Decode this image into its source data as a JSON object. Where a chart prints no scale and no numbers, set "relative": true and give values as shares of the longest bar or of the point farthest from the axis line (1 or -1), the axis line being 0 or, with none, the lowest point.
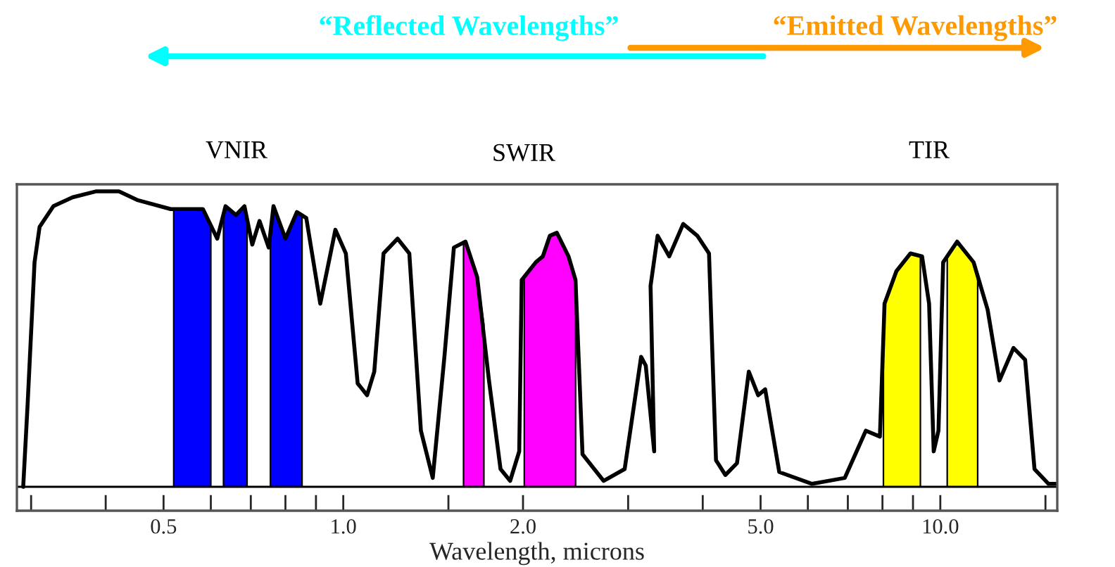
{
  "chart_data": {
    "type": "line",
    "relative": true,
    "log": "x",
    "tick_labels": "x",
    "marker": "none",
    "line_style": "solid",
    "xlabel": "Wavelength, microns",
    "annotations": [
      "VNIR",
      "SWIR",
      "TIR",
      "“Reflected Wavelengths”",
      "“Emitted Wavelengths”"
    ],
    "xlim": [
      0.284,
      15.7
    ],
    "xticks": [
      {
        "value": 0.3,
        "label": null
      },
      {
        "value": 0.4,
        "label": null
      },
      {
        "value": 0.5,
        "label": "0.5"
      },
      {
        "value": 0.6,
        "label": null
      },
      {
        "value": 0.7,
        "label": null
      },
      {
        "value": 0.8,
        "label": null
      },
      {
        "value": 0.9,
        "label": null
      },
      {
        "value": 1,
        "label": "1.0"
      },
      {
        "value": 1.5,
        "label": null
      },
      {
        "value": 2,
        "label": "2.0"
      },
      {
        "value": 3,
        "label": null
      },
      {
        "value": 4,
        "label": null
      },
      {
        "value": 5,
        "label": "5.0"
      },
      {
        "value": 6,
        "label": null
      },
      {
        "value": 7,
        "label": null
      },
      {
        "value": 8,
        "label": null
      },
      {
        "value": 9,
        "label": null
      },
      {
        "value": 10,
        "label": "10.0"
      },
      {
        "value": 15,
        "label": null
      }
    ],
    "series": [
      {
        "type": "area",
        "color": "#0000ff",
        "x": [
          0.52,
          0.582,
          0.6
        ],
        "values": [
          0.94,
          0.94,
          0.89
        ]
      },
      {
        "type": "area",
        "color": "#0000ff",
        "x": [
          0.63,
          0.635,
          0.661,
          0.683,
          0.69
        ],
        "values": [
          0.92,
          0.95,
          0.92,
          0.95,
          0.9
        ]
      },
      {
        "type": "area",
        "color": "#0000ff",
        "x": [
          0.755,
          0.764,
          0.8,
          0.836,
          0.853
        ],
        "values": [
          0.86,
          0.95,
          0.84,
          0.93,
          0.92
        ]
      },
      {
        "type": "area",
        "color": "#ff00ff",
        "x": [
          1.59,
          1.602,
          1.676,
          1.72
        ],
        "values": [
          0.83,
          0.83,
          0.71,
          0.55
        ]
      },
      {
        "type": "area",
        "color": "#ff00ff",
        "x": [
          2.01,
          2.1,
          2.159,
          2.218,
          2.279,
          2.384,
          2.45
        ],
        "values": [
          0.71,
          0.76,
          0.78,
          0.85,
          0.86,
          0.78,
          0.7
        ]
      },
      {
        "type": "area",
        "color": "#ffff00",
        "x": [
          8.03,
          8.441,
          8.911,
          9.26
        ],
        "values": [
          0.62,
          0.73,
          0.79,
          0.78
        ]
      },
      {
        "type": "area",
        "color": "#ffff00",
        "x": [
          10.27,
          10.67,
          11.37,
          11.55
        ],
        "values": [
          0.78,
          0.83,
          0.76,
          0.71
        ]
      },
      {
        "color": "#000000",
        "x": [
          0.291,
          0.296,
          0.304,
          0.31,
          0.327,
          0.352,
          0.385,
          0.421,
          0.453,
          0.514,
          0.582,
          0.615,
          0.635,
          0.661,
          0.683,
          0.704,
          0.724,
          0.75,
          0.764,
          0.8,
          0.836,
          0.867,
          0.915,
          0.97,
          1.01,
          1.057,
          1.096,
          1.127,
          1.168,
          1.233,
          1.29,
          1.349,
          1.412,
          1.477,
          1.532,
          1.602,
          1.676,
          1.754,
          1.834,
          1.903,
          1.971,
          1.99,
          2.101,
          2.159,
          2.218,
          2.279,
          2.384,
          2.449,
          2.516,
          2.729,
          2.96,
          3.154,
          3.211,
          3.317,
          3.271,
          3.361,
          3.515,
          3.71,
          3.917,
          4.098,
          4.21,
          4.365,
          4.565,
          4.778,
          4.953,
          5.089,
          5.373,
          6.098,
          6.918,
          7.504,
          7.921,
          8.065,
          8.441,
          8.911,
          9.32,
          9.576,
          9.748,
          9.929,
          10.11,
          10.67,
          11.37,
          12.0,
          12.56,
          13.26,
          13.87,
          14.38,
          15.18,
          15.6
        ],
        "values": [
          0,
          0.28,
          0.76,
          0.88,
          0.95,
          0.98,
          1.0,
          1.0,
          0.97,
          0.94,
          0.94,
          0.84,
          0.95,
          0.92,
          0.95,
          0.82,
          0.9,
          0.81,
          0.95,
          0.84,
          0.93,
          0.91,
          0.62,
          0.87,
          0.79,
          0.35,
          0.31,
          0.39,
          0.79,
          0.84,
          0.79,
          0.19,
          0.03,
          0.44,
          0.81,
          0.83,
          0.71,
          0.36,
          0.06,
          0.02,
          0.12,
          0.7,
          0.76,
          0.78,
          0.85,
          0.86,
          0.78,
          0.7,
          0.11,
          0.02,
          0.06,
          0.44,
          0.41,
          0.12,
          0.68,
          0.85,
          0.78,
          0.89,
          0.85,
          0.79,
          0.09,
          0.04,
          0.08,
          0.39,
          0.31,
          0.33,
          0.05,
          0.01,
          0.03,
          0.19,
          0.17,
          0.62,
          0.73,
          0.79,
          0.78,
          0.62,
          0.12,
          0.19,
          0.76,
          0.83,
          0.76,
          0.6,
          0.36,
          0.47,
          0.43,
          0.06,
          0.01,
          0.01
        ]
      }
    ]
  }
}
